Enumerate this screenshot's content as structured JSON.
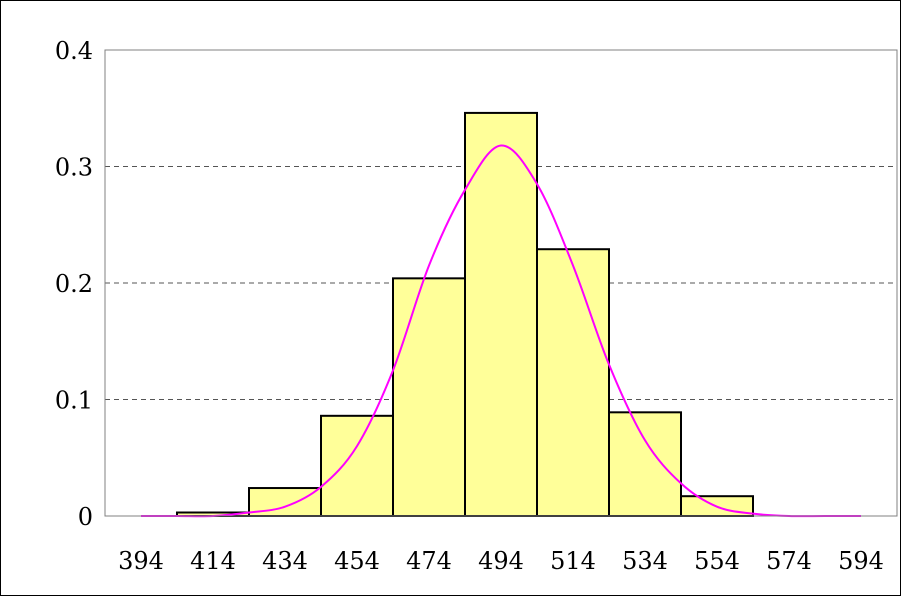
{
  "chart_data": {
    "type": "bar",
    "title": "",
    "xlabel": "",
    "ylabel": "",
    "x_ticks": [
      "394",
      "414",
      "434",
      "454",
      "474",
      "494",
      "514",
      "534",
      "554",
      "574",
      "594"
    ],
    "y_ticks": [
      "0",
      "0.1",
      "0.2",
      "0.3",
      "0.4"
    ],
    "xlim": [
      394,
      594
    ],
    "ylim": [
      0,
      0.4
    ],
    "grid": "horizontal dashed",
    "legend": "none",
    "bins": [
      {
        "start": 404,
        "end": 424,
        "value": 0.003
      },
      {
        "start": 424,
        "end": 444,
        "value": 0.024
      },
      {
        "start": 444,
        "end": 464,
        "value": 0.086
      },
      {
        "start": 464,
        "end": 484,
        "value": 0.204
      },
      {
        "start": 484,
        "end": 504,
        "value": 0.346
      },
      {
        "start": 504,
        "end": 524,
        "value": 0.229
      },
      {
        "start": 524,
        "end": 544,
        "value": 0.089
      },
      {
        "start": 544,
        "end": 564,
        "value": 0.017
      }
    ],
    "series": [
      {
        "type": "line",
        "x": [
          394,
          404,
          414,
          424,
          434,
          444,
          454,
          464,
          474,
          484,
          494,
          504,
          514,
          524,
          534,
          544,
          554,
          564,
          574,
          584,
          594
        ],
        "y": [
          0.0,
          0.0,
          0.0,
          0.003,
          0.008,
          0.025,
          0.06,
          0.125,
          0.215,
          0.28,
          0.318,
          0.285,
          0.215,
          0.13,
          0.065,
          0.028,
          0.008,
          0.002,
          0.0,
          0.0,
          0.0
        ]
      }
    ],
    "colors": {
      "bar_fill": "#ffff99",
      "bar_stroke": "#000000",
      "curve": "#ff00ff",
      "grid": "#555555"
    }
  }
}
